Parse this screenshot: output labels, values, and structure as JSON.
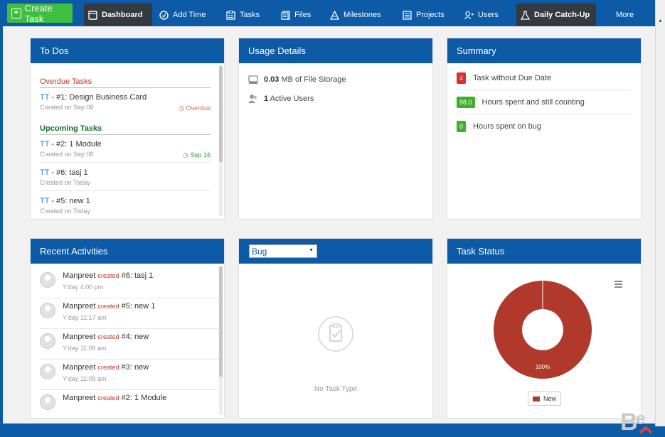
{
  "topbar": {
    "create_task": "Create Task",
    "nav": [
      {
        "label": "Dashboard",
        "icon": "dashboard-icon"
      },
      {
        "label": "Add Time",
        "icon": "clock-icon"
      },
      {
        "label": "Tasks",
        "icon": "tasks-icon"
      },
      {
        "label": "Files",
        "icon": "files-icon"
      },
      {
        "label": "Milestones",
        "icon": "milestone-icon"
      },
      {
        "label": "Projects",
        "icon": "projects-icon"
      },
      {
        "label": "Users",
        "icon": "add-user-icon"
      },
      {
        "label": "Daily Catch-Up",
        "icon": "flask-icon"
      },
      {
        "label": "More",
        "icon": ""
      }
    ]
  },
  "todos": {
    "title": "To Dos",
    "overdue_heading": "Overdue Tasks",
    "upcoming_heading": "Upcoming Tasks",
    "overdue": [
      {
        "prefix": "TT",
        "sep": " - ",
        "title": "#1: Design Business Card",
        "meta": "Created on Sep 08",
        "badge": "Overdue"
      }
    ],
    "upcoming": [
      {
        "prefix": "TT",
        "sep": " - ",
        "title": "#2: 1 Module",
        "meta": "Created on Sep 08",
        "badge": "Sep 16"
      },
      {
        "prefix": "TT",
        "sep": " - ",
        "title": "#6: tasj 1",
        "meta": "Created on Today",
        "badge": ""
      },
      {
        "prefix": "TT",
        "sep": " - ",
        "title": "#5: new 1",
        "meta": "Created on Today",
        "badge": ""
      }
    ]
  },
  "usage": {
    "title": "Usage Details",
    "storage_value": "0.03",
    "storage_text": "MB of File Storage",
    "users_value": "1",
    "users_text": "Active Users"
  },
  "summary": {
    "title": "Summary",
    "rows": [
      {
        "value": "4",
        "text": "Task without Due Date",
        "color": "#d9302c"
      },
      {
        "value": "98.0",
        "text": "Hours spent and still counting",
        "color": "#3fae29"
      },
      {
        "value": "0",
        "text": "Hours spent on bug",
        "color": "#3fae29"
      }
    ]
  },
  "activities": {
    "title": "Recent Activities",
    "items": [
      {
        "user": "Manpreet",
        "verb": "created",
        "item": "#6: tasj 1",
        "time": "Y'day 4:00 pm"
      },
      {
        "user": "Manpreet",
        "verb": "created",
        "item": "#5: new 1",
        "time": "Y'day 11:17 am"
      },
      {
        "user": "Manpreet",
        "verb": "created",
        "item": "#4: new",
        "time": "Y'day 11:06 am"
      },
      {
        "user": "Manpreet",
        "verb": "created",
        "item": "#3: new",
        "time": "Y'day 11:05 am"
      },
      {
        "user": "Manpreet",
        "verb": "created",
        "item": "#2: 1 Module",
        "time": ""
      }
    ]
  },
  "bug_panel": {
    "select_value": "Bug",
    "empty_text": "No Task Type"
  },
  "task_status": {
    "title": "Task Status",
    "legend": "New",
    "slice_label": "100%"
  },
  "chart_data": {
    "type": "pie",
    "categories": [
      "New"
    ],
    "values": [
      100
    ],
    "colors": [
      "#b0392b"
    ],
    "data_labels": [
      "100%"
    ],
    "legend_position": "bottom"
  },
  "colors": {
    "brand_blue": "#0d5aa7",
    "create_green": "#3fbf3f",
    "active_nav": "#333a41",
    "overdue_red": "#c0392b",
    "upcoming_green": "#1d6b26"
  }
}
